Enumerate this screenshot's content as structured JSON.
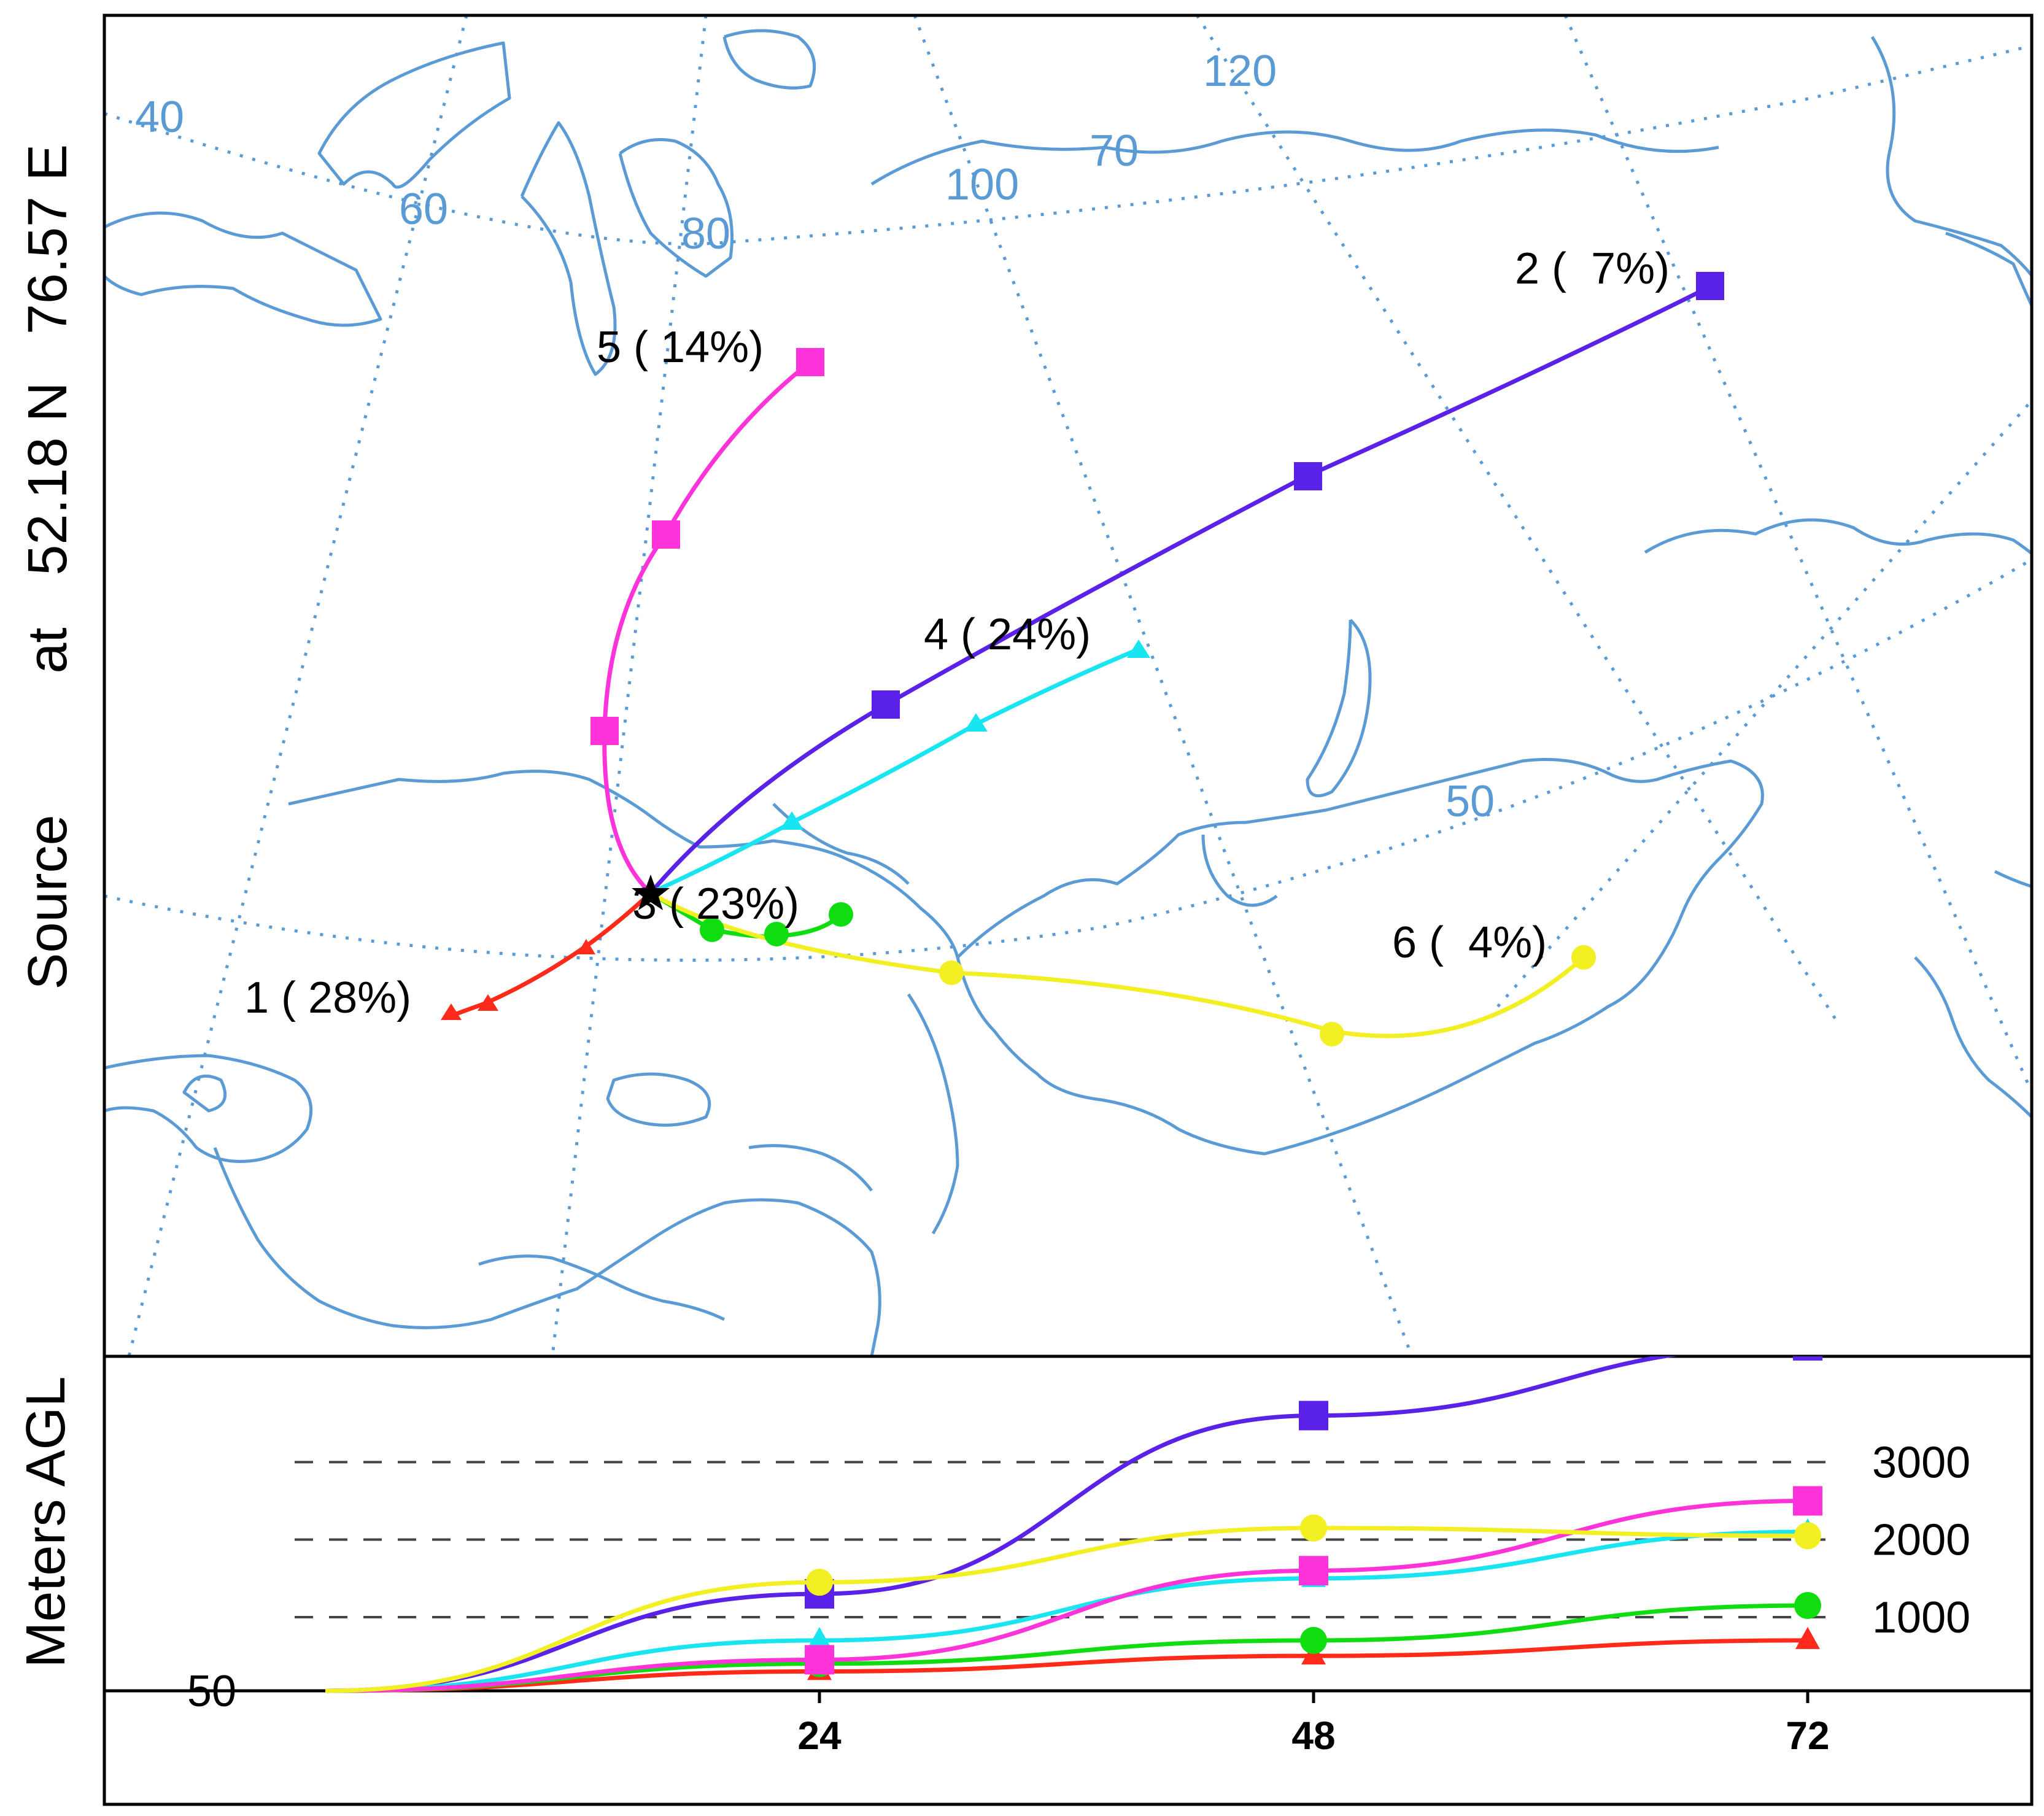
{
  "side_title": {
    "words": [
      "Source",
      "at",
      "52.18 N",
      "76.57 E"
    ]
  },
  "map": {
    "grid_labels": [
      "40",
      "60",
      "80",
      "100",
      "70",
      "120",
      "50"
    ],
    "source_marker": "star-icon",
    "trajectories": [
      {
        "id": 1,
        "label": "1 ( 28%)",
        "color": "#ff2a1a",
        "marker": "triangle"
      },
      {
        "id": 2,
        "label": "2 (  7%)",
        "color": "#5a22e8",
        "marker": "square"
      },
      {
        "id": 3,
        "label": "3 ( 23%)",
        "color": "#10dd10",
        "marker": "circle"
      },
      {
        "id": 4,
        "label": "4 ( 24%)",
        "color": "#19e5f0",
        "marker": "triangle"
      },
      {
        "id": 5,
        "label": "5 ( 14%)",
        "color": "#ff33d9",
        "marker": "square"
      },
      {
        "id": 6,
        "label": "6 (  4%)",
        "color": "#f2ef22",
        "marker": "circle"
      }
    ],
    "colors": {
      "coast": "#5b9bd5",
      "grid": "#5b9bd5",
      "frame": "#000000"
    }
  },
  "chart_data": {
    "type": "line",
    "ylabel": "Meters AGL",
    "x_ticks": [
      "24",
      "48",
      "72"
    ],
    "y_ticks": [
      "50",
      "1000",
      "2000",
      "3000"
    ],
    "x_range": [
      0,
      72
    ],
    "series": [
      {
        "name": "1 ( 28%)",
        "color": "#ff2a1a",
        "marker": "triangle",
        "x": [
          0,
          24,
          48,
          72
        ],
        "y": [
          50,
          300,
          500,
          700
        ]
      },
      {
        "name": "2 (  7%)",
        "color": "#5a22e8",
        "marker": "square",
        "x": [
          0,
          24,
          48,
          72
        ],
        "y": [
          50,
          1300,
          3600,
          4500
        ]
      },
      {
        "name": "3 ( 23%)",
        "color": "#10dd10",
        "marker": "circle",
        "x": [
          0,
          24,
          48,
          72
        ],
        "y": [
          50,
          400,
          700,
          1150
        ]
      },
      {
        "name": "4 ( 24%)",
        "color": "#19e5f0",
        "marker": "triangle",
        "x": [
          0,
          24,
          48,
          72
        ],
        "y": [
          50,
          700,
          1500,
          2100
        ]
      },
      {
        "name": "5 ( 14%)",
        "color": "#ff33d9",
        "marker": "square",
        "x": [
          0,
          24,
          48,
          72
        ],
        "y": [
          50,
          450,
          1600,
          2500
        ]
      },
      {
        "name": "6 (  4%)",
        "color": "#f2ef22",
        "marker": "circle",
        "x": [
          0,
          24,
          48,
          72
        ],
        "y": [
          50,
          1450,
          2150,
          2050
        ]
      }
    ]
  }
}
